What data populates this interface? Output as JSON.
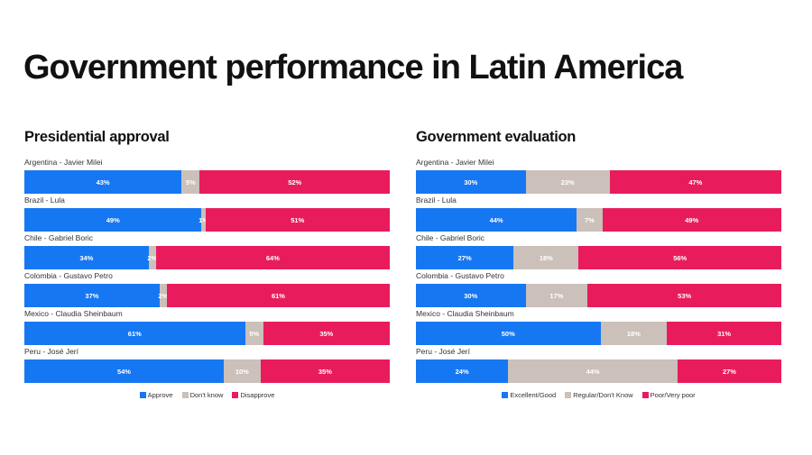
{
  "title": "Government performance in Latin America",
  "colors": {
    "blue": "#1677f2",
    "gray": "#cbc0ba",
    "red": "#e81c5c"
  },
  "chart_data": [
    {
      "type": "bar",
      "orientation": "horizontal",
      "stacked": true,
      "title": "Presidential approval",
      "categories": [
        "Argentina - Javier Milei",
        "Brazil - Lula",
        "Chile - Gabriel Boric",
        "Colombia - Gustavo Petro",
        "Mexico - Claudia Sheinbaum",
        "Peru - José Jerí"
      ],
      "series": [
        {
          "name": "Approve",
          "color": "#1677f2",
          "values": [
            43,
            49,
            34,
            37,
            61,
            54
          ]
        },
        {
          "name": "Don't know",
          "color": "#cbc0ba",
          "values": [
            5,
            1,
            2,
            2,
            5,
            10
          ]
        },
        {
          "name": "Disapprove",
          "color": "#e81c5c",
          "values": [
            52,
            51,
            64,
            61,
            35,
            35
          ]
        }
      ],
      "legend": "bottom",
      "grid": false
    },
    {
      "type": "bar",
      "orientation": "horizontal",
      "stacked": true,
      "title": "Government evaluation",
      "categories": [
        "Argentina - Javier Milei",
        "Brazil - Lula",
        "Chile - Gabriel Boric",
        "Colombia - Gustavo Petro",
        "Mexico - Claudia Sheinbaum",
        "Peru - José Jerí"
      ],
      "series": [
        {
          "name": "Excellent/Good",
          "color": "#1677f2",
          "values": [
            30,
            44,
            27,
            30,
            50,
            24
          ]
        },
        {
          "name": "Regular/Don't Know",
          "color": "#cbc0ba",
          "values": [
            23,
            7,
            18,
            17,
            18,
            44
          ]
        },
        {
          "name": "Poor/Very poor",
          "color": "#e81c5c",
          "values": [
            47,
            49,
            56,
            53,
            31,
            27
          ]
        }
      ],
      "legend": "bottom",
      "grid": false
    }
  ]
}
